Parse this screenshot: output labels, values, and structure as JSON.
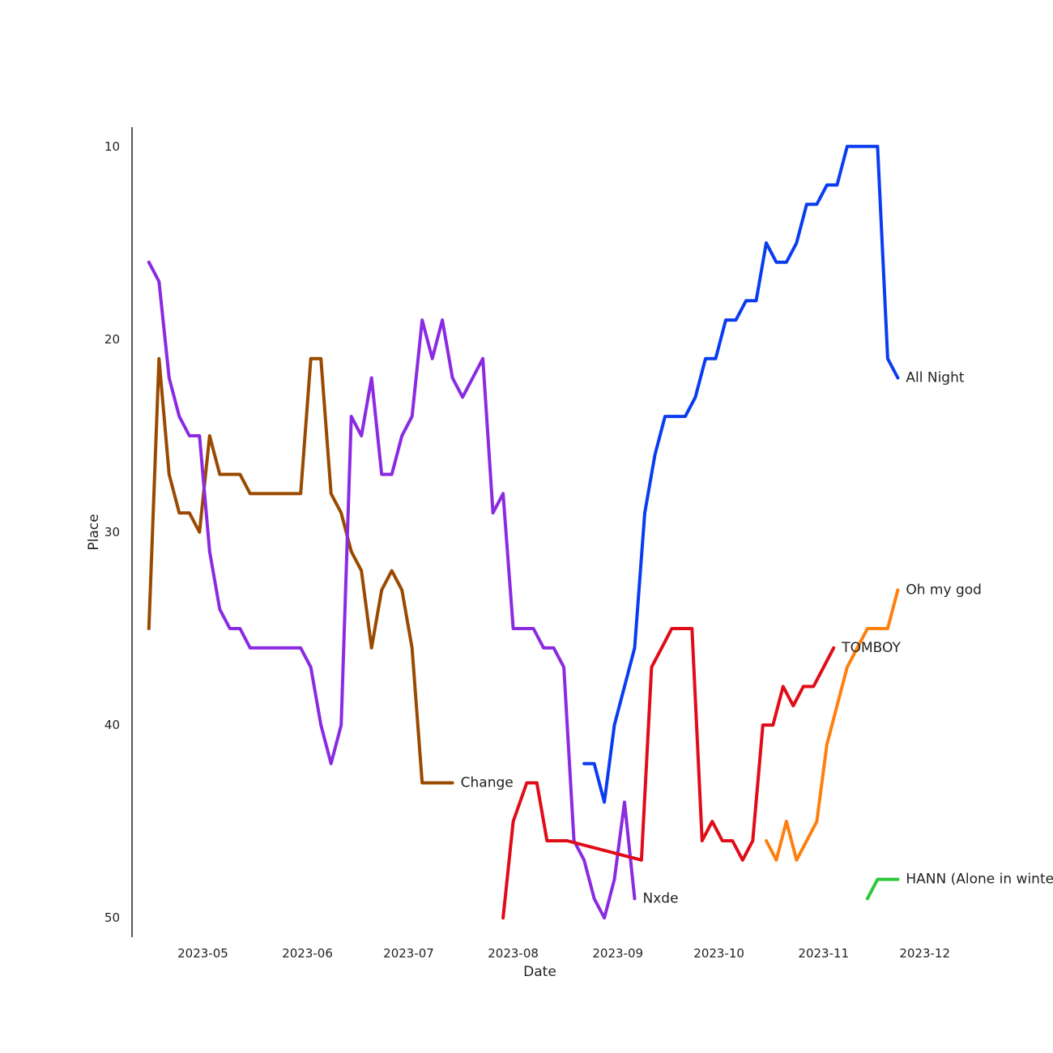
{
  "chart_data": {
    "type": "line",
    "title": "",
    "xlabel": "Date",
    "ylabel": "Place",
    "y_inverted": true,
    "xlim": [
      "2023-04-10",
      "2023-12-15"
    ],
    "ylim": [
      9,
      51
    ],
    "x_ticks": [
      "2023-05-01",
      "2023-06-01",
      "2023-07-01",
      "2023-08-01",
      "2023-09-01",
      "2023-10-01",
      "2023-11-01",
      "2023-12-01"
    ],
    "x_tick_labels": [
      "2023-05",
      "2023-06",
      "2023-07",
      "2023-08",
      "2023-09",
      "2023-10",
      "2023-11",
      "2023-12"
    ],
    "y_ticks": [
      10,
      20,
      30,
      40,
      50
    ],
    "y_tick_labels": [
      "10",
      "20",
      "30",
      "40",
      "50"
    ],
    "grid": false,
    "legend": "none (labels at line ends)",
    "series": [
      {
        "name": "Change",
        "color": "#9a4a00",
        "x": [
          "2023-04-15",
          "2023-04-18",
          "2023-04-21",
          "2023-04-24",
          "2023-04-27",
          "2023-04-30",
          "2023-05-03",
          "2023-05-06",
          "2023-05-09",
          "2023-05-12",
          "2023-05-15",
          "2023-05-18",
          "2023-05-21",
          "2023-05-24",
          "2023-05-27",
          "2023-05-30",
          "2023-06-02",
          "2023-06-05",
          "2023-06-08",
          "2023-06-11",
          "2023-06-14",
          "2023-06-17",
          "2023-06-20",
          "2023-06-23",
          "2023-06-26",
          "2023-06-29",
          "2023-07-02",
          "2023-07-05",
          "2023-07-08",
          "2023-07-11",
          "2023-07-14"
        ],
        "y": [
          35,
          21,
          27,
          29,
          29,
          30,
          25,
          27,
          27,
          27,
          28,
          28,
          28,
          28,
          28,
          28,
          21,
          21,
          28,
          29,
          31,
          32,
          36,
          33,
          32,
          33,
          36,
          43,
          43,
          43,
          43
        ]
      },
      {
        "name": "Nxde",
        "color": "#8a2be2",
        "x": [
          "2023-04-15",
          "2023-04-18",
          "2023-04-21",
          "2023-04-24",
          "2023-04-27",
          "2023-04-30",
          "2023-05-03",
          "2023-05-06",
          "2023-05-09",
          "2023-05-12",
          "2023-05-15",
          "2023-05-18",
          "2023-05-21",
          "2023-05-24",
          "2023-05-27",
          "2023-05-30",
          "2023-06-02",
          "2023-06-05",
          "2023-06-08",
          "2023-06-11",
          "2023-06-14",
          "2023-06-17",
          "2023-06-20",
          "2023-06-23",
          "2023-06-26",
          "2023-06-29",
          "2023-07-02",
          "2023-07-05",
          "2023-07-08",
          "2023-07-11",
          "2023-07-14",
          "2023-07-17",
          "2023-07-20",
          "2023-07-23",
          "2023-07-26",
          "2023-07-29",
          "2023-08-01",
          "2023-08-04",
          "2023-08-07",
          "2023-08-10",
          "2023-08-13",
          "2023-08-16",
          "2023-08-19",
          "2023-08-22",
          "2023-08-25",
          "2023-08-28",
          "2023-08-31",
          "2023-09-03",
          "2023-09-06"
        ],
        "y": [
          16,
          17,
          22,
          24,
          25,
          25,
          31,
          34,
          35,
          35,
          36,
          36,
          36,
          36,
          36,
          36,
          37,
          40,
          42,
          40,
          24,
          25,
          22,
          27,
          27,
          25,
          24,
          19,
          21,
          19,
          22,
          23,
          22,
          21,
          29,
          28,
          35,
          35,
          35,
          36,
          36,
          37,
          46,
          47,
          49,
          50,
          48,
          44,
          49
        ]
      },
      {
        "name": "All Night",
        "color": "#0a3cf0",
        "x": [
          "2023-08-22",
          "2023-08-25",
          "2023-08-28",
          "2023-08-31",
          "2023-09-03",
          "2023-09-06",
          "2023-09-09",
          "2023-09-12",
          "2023-09-15",
          "2023-09-18",
          "2023-09-21",
          "2023-09-24",
          "2023-09-27",
          "2023-09-30",
          "2023-10-03",
          "2023-10-06",
          "2023-10-09",
          "2023-10-12",
          "2023-10-15",
          "2023-10-18",
          "2023-10-21",
          "2023-10-24",
          "2023-10-27",
          "2023-10-30",
          "2023-11-02",
          "2023-11-05",
          "2023-11-08",
          "2023-11-11",
          "2023-11-14",
          "2023-11-17",
          "2023-11-20",
          "2023-11-23"
        ],
        "y": [
          42,
          42,
          44,
          40,
          38,
          36,
          29,
          26,
          24,
          24,
          24,
          23,
          21,
          21,
          19,
          19,
          18,
          18,
          15,
          16,
          16,
          15,
          13,
          13,
          12,
          12,
          10,
          10,
          10,
          10,
          21,
          22
        ]
      },
      {
        "name": "TOMBOY",
        "color": "#e00c18",
        "x": [
          "2023-07-29",
          "2023-08-01",
          "2023-08-05",
          "2023-08-08",
          "2023-08-11",
          "2023-08-14",
          "2023-08-17",
          "2023-09-08",
          "2023-09-11",
          "2023-09-14",
          "2023-09-17",
          "2023-09-20",
          "2023-09-23",
          "2023-09-26",
          "2023-09-29",
          "2023-10-02",
          "2023-10-05",
          "2023-10-08",
          "2023-10-11",
          "2023-10-14",
          "2023-10-17",
          "2023-10-20",
          "2023-10-23",
          "2023-10-26",
          "2023-10-29",
          "2023-11-01",
          "2023-11-04"
        ],
        "y": [
          50,
          45,
          43,
          43,
          46,
          46,
          46,
          47,
          37,
          36,
          35,
          35,
          35,
          46,
          45,
          46,
          46,
          47,
          46,
          40,
          40,
          38,
          39,
          38,
          38,
          37,
          36
        ]
      },
      {
        "name": "Oh my god",
        "color": "#ff7f0e",
        "x": [
          "2023-10-15",
          "2023-10-18",
          "2023-10-21",
          "2023-10-24",
          "2023-10-27",
          "2023-10-30",
          "2023-11-02",
          "2023-11-05",
          "2023-11-08",
          "2023-11-11",
          "2023-11-14",
          "2023-11-17",
          "2023-11-20",
          "2023-11-23"
        ],
        "y": [
          46,
          47,
          45,
          47,
          46,
          45,
          41,
          39,
          37,
          36,
          35,
          35,
          35,
          33
        ]
      },
      {
        "name": "HANN (Alone in winter)",
        "color": "#2ec73b",
        "x": [
          "2023-11-14",
          "2023-11-17",
          "2023-11-20",
          "2023-11-23"
        ],
        "y": [
          49,
          48,
          48,
          48
        ]
      }
    ]
  }
}
